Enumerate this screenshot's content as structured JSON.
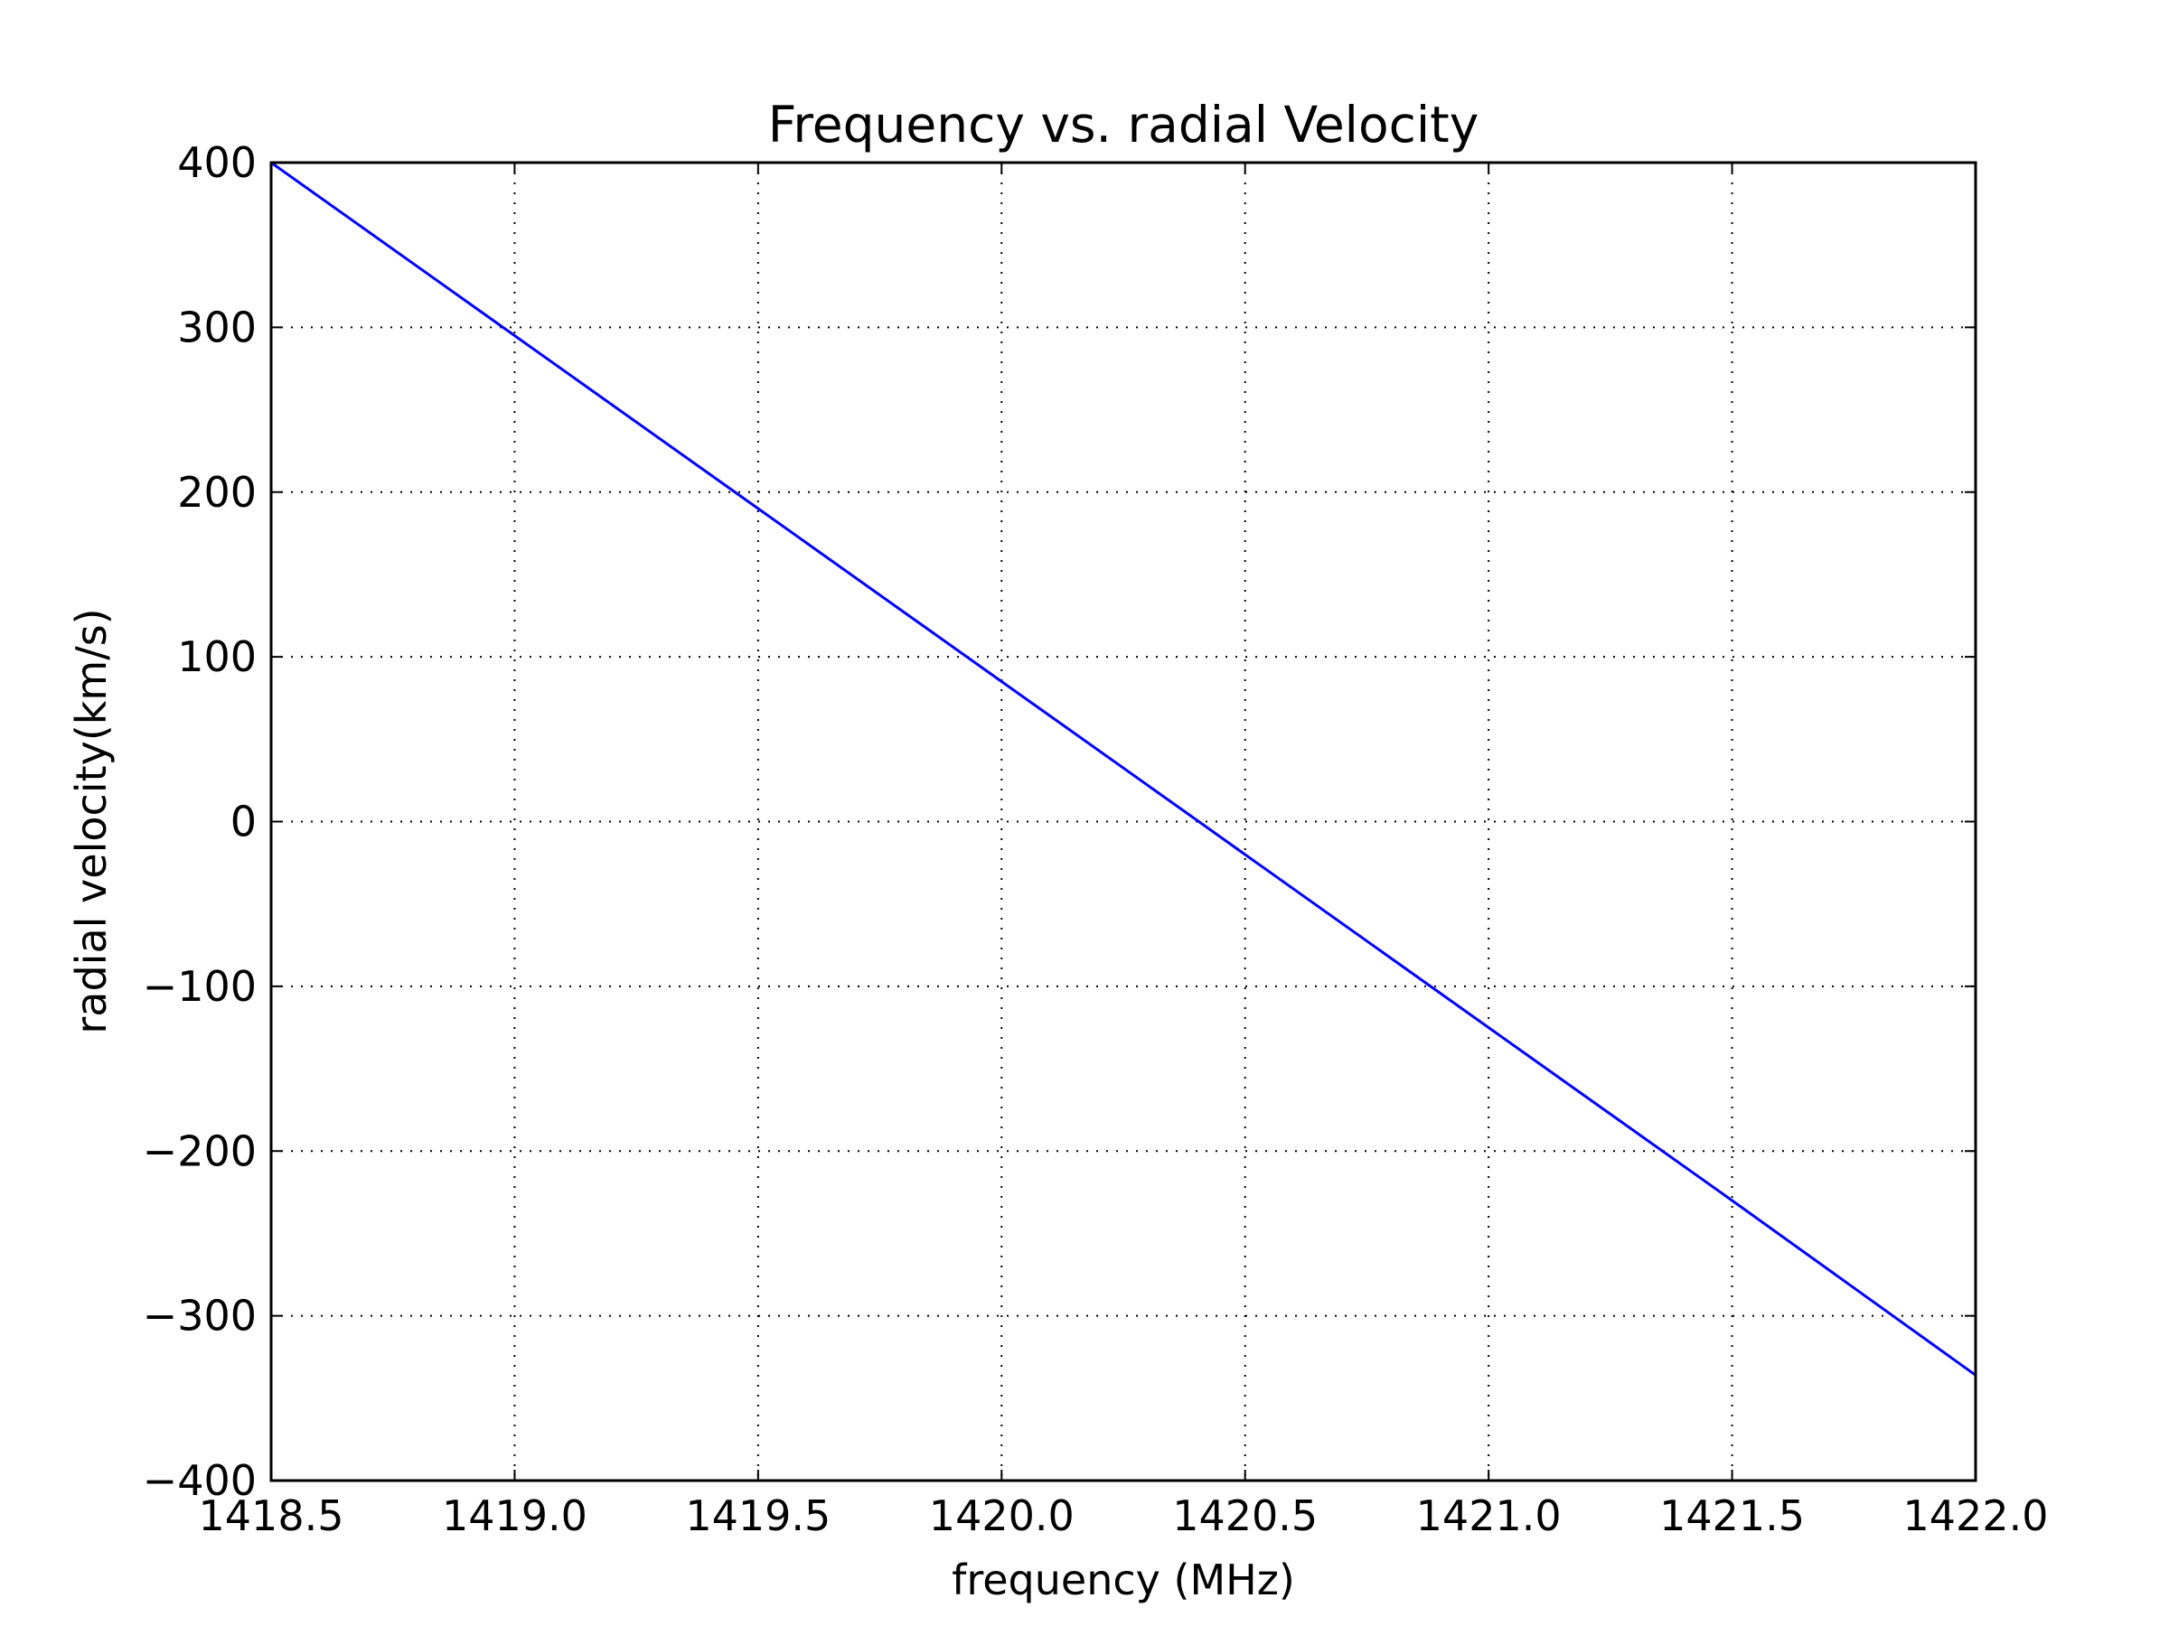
{
  "chart_data": {
    "type": "line",
    "title": "Frequency vs. radial Velocity",
    "xlabel": "frequency (MHz)",
    "ylabel": "radial velocity(km/s)",
    "xlim": [
      1418.5,
      1422.0
    ],
    "ylim": [
      -400,
      400
    ],
    "xticks": [
      1418.5,
      1419.0,
      1419.5,
      1420.0,
      1420.5,
      1421.0,
      1421.5,
      1422.0
    ],
    "xtick_labels": [
      "1418.5",
      "1419.0",
      "1419.5",
      "1420.0",
      "1420.5",
      "1421.0",
      "1421.5",
      "1422.0"
    ],
    "yticks": [
      400,
      300,
      200,
      100,
      0,
      -100,
      -200,
      -300,
      -400
    ],
    "ytick_labels": [
      "400",
      "300",
      "200",
      "100",
      "0",
      "−100",
      "−200",
      "−300",
      "−400"
    ],
    "grid": true,
    "series": [
      {
        "name": "radial velocity",
        "color": "#0000ff",
        "x": [
          1418.5,
          1419.0,
          1419.5,
          1420.0,
          1420.405,
          1420.5,
          1421.0,
          1421.5,
          1422.0
        ],
        "y": [
          400,
          295,
          190,
          85,
          0,
          -20,
          -125,
          -230,
          -336
        ]
      }
    ]
  }
}
